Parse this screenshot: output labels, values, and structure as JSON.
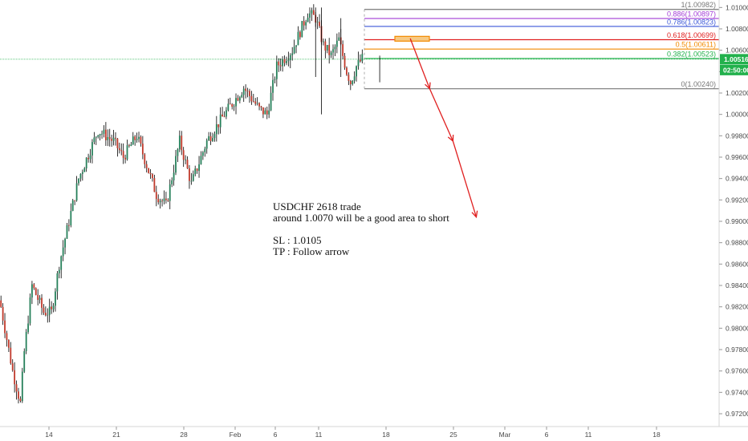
{
  "chart_data": {
    "type": "candlestick",
    "symbol": "USDCHF",
    "ylim": [
      0.9708,
      1.0107
    ],
    "y_ticks": [
      "1.01000",
      "1.00800",
      "1.00600",
      "1.00400",
      "1.00200",
      "1.00000",
      "0.99800",
      "0.99600",
      "0.99400",
      "0.99200",
      "0.99000",
      "0.98800",
      "0.98600",
      "0.98400",
      "0.98200",
      "0.98000",
      "0.97800",
      "0.97600",
      "0.97400",
      "0.97200"
    ],
    "x_ticks": [
      "14",
      "21",
      "28",
      "Feb",
      "6",
      "11",
      "18",
      "25",
      "Mar",
      "6",
      "11",
      "18"
    ],
    "grid": false,
    "colors": {
      "up": "#26805a",
      "down": "#c0392b",
      "wick": "#000000"
    },
    "price_path": [
      {
        "bar": 0,
        "close": 0.982
      },
      {
        "bar": 6,
        "close": 0.976
      },
      {
        "bar": 10,
        "close": 0.973
      },
      {
        "bar": 12,
        "close": 0.9778
      },
      {
        "bar": 16,
        "close": 0.984
      },
      {
        "bar": 22,
        "close": 0.9815
      },
      {
        "bar": 26,
        "close": 0.9815
      },
      {
        "bar": 30,
        "close": 0.986
      },
      {
        "bar": 40,
        "close": 0.994
      },
      {
        "bar": 50,
        "close": 0.9985
      },
      {
        "bar": 58,
        "close": 0.9975
      },
      {
        "bar": 63,
        "close": 0.996
      },
      {
        "bar": 70,
        "close": 0.998
      },
      {
        "bar": 80,
        "close": 0.9925
      },
      {
        "bar": 85,
        "close": 0.9915
      },
      {
        "bar": 92,
        "close": 0.9975
      },
      {
        "bar": 98,
        "close": 0.9935
      },
      {
        "bar": 106,
        "close": 0.9975
      },
      {
        "bar": 115,
        "close": 1.0
      },
      {
        "bar": 125,
        "close": 1.0025
      },
      {
        "bar": 133,
        "close": 1.0005
      },
      {
        "bar": 137,
        "close": 1.0
      },
      {
        "bar": 142,
        "close": 1.0045
      },
      {
        "bar": 150,
        "close": 1.006
      },
      {
        "bar": 158,
        "close": 1.0095
      },
      {
        "bar": 162,
        "close": 1.009
      },
      {
        "bar": 166,
        "close": 1.0065
      },
      {
        "bar": 170,
        "close": 1.0055
      },
      {
        "bar": 174,
        "close": 1.007
      },
      {
        "bar": 178,
        "close": 1.004
      },
      {
        "bar": 180,
        "close": 1.003
      },
      {
        "bar": 183,
        "close": 1.0045
      },
      {
        "bar": 186,
        "close": 1.0052
      }
    ],
    "fib_levels": [
      {
        "label": "1(1.00982)",
        "value": 1.00982,
        "color": "#777777"
      },
      {
        "label": "0.886(1.00897)",
        "value": 1.00897,
        "color": "#a23cd6"
      },
      {
        "label": "0.786(1.00823)",
        "value": 1.00823,
        "color": "#3a56d8"
      },
      {
        "label": "0.618(1.00699)",
        "value": 1.00699,
        "color": "#e02020"
      },
      {
        "label": "0.5(1.00611)",
        "value": 1.00611,
        "color": "#f28a00"
      },
      {
        "label": "0.382(1.00523)",
        "value": 1.00523,
        "color": "#22b14c"
      },
      {
        "label": "0(1.00240)",
        "value": 1.0024,
        "color": "#777777"
      }
    ],
    "current_price": {
      "label": "1.00516",
      "value": 1.00516,
      "color": "#22b14c"
    },
    "countdown": {
      "label": "02:50:00",
      "color": "#22b14c"
    },
    "short_zone": {
      "low": 1.00685,
      "high": 1.0073,
      "color": "#f28a00"
    },
    "arrow_path": [
      {
        "bar": 188,
        "value": 1.0071
      },
      {
        "bar": 198,
        "value": 1.0024
      },
      {
        "bar": 210,
        "value": 0.9975
      },
      {
        "bar": 222,
        "value": 0.9904
      }
    ],
    "annotation": [
      "USDCHF 2618 trade",
      "around 1.0070 will be a good area to short",
      "",
      "SL : 1.0105",
      "TP : Follow arrow"
    ]
  }
}
